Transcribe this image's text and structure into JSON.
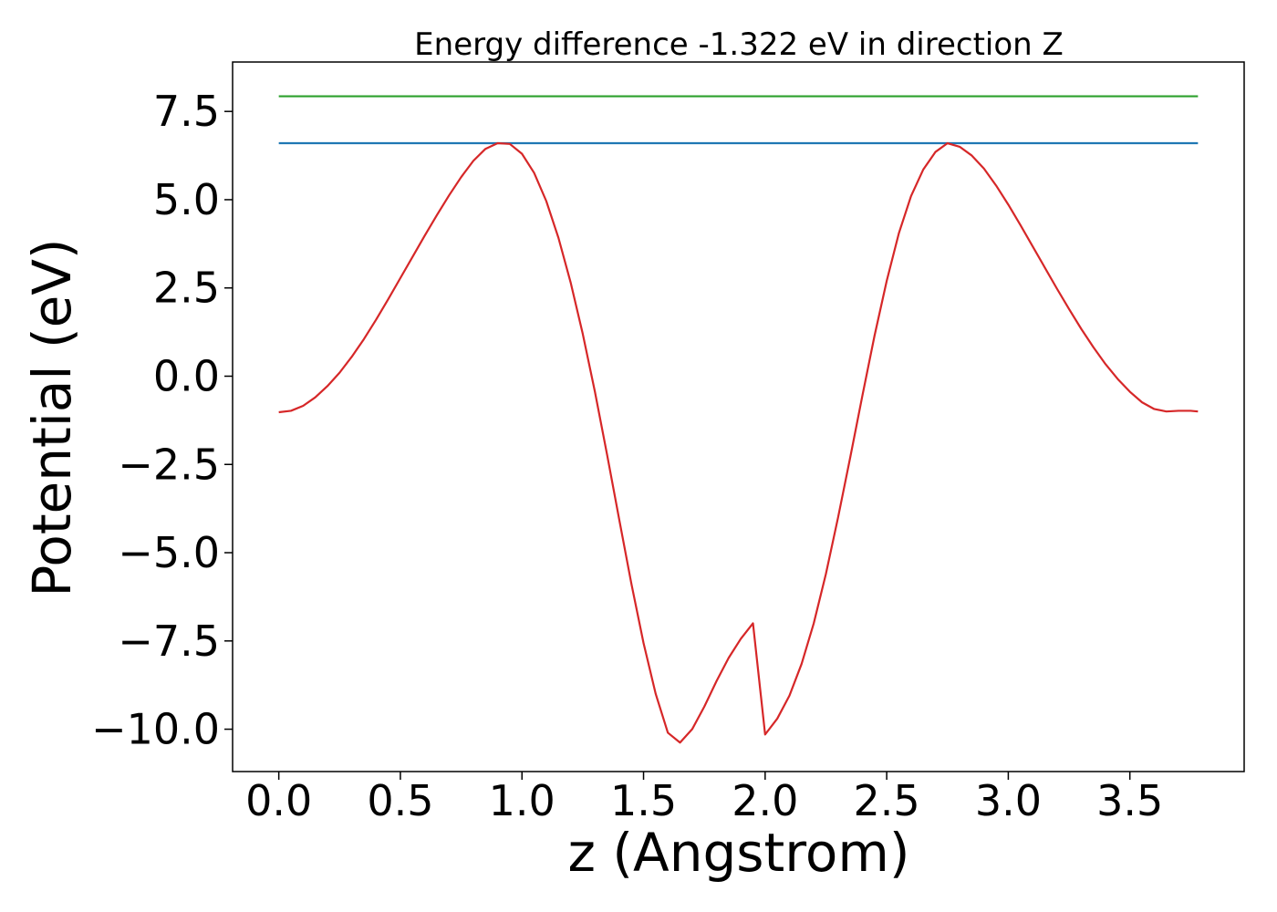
{
  "chart_data": {
    "type": "line",
    "title": "Energy difference -1.322 eV in direction Z",
    "xlabel": "z (Angstrom)",
    "ylabel": "Potential (eV)",
    "xlim": [
      -0.19,
      3.97
    ],
    "ylim": [
      -11.2,
      8.9
    ],
    "grid": false,
    "x_ticks": [
      {
        "value": 0.0,
        "label": "0.0"
      },
      {
        "value": 0.5,
        "label": "0.5"
      },
      {
        "value": 1.0,
        "label": "1.0"
      },
      {
        "value": 1.5,
        "label": "1.5"
      },
      {
        "value": 2.0,
        "label": "2.0"
      },
      {
        "value": 2.5,
        "label": "2.5"
      },
      {
        "value": 3.0,
        "label": "3.0"
      },
      {
        "value": 3.5,
        "label": "3.5"
      }
    ],
    "y_ticks": [
      {
        "value": 7.5,
        "label": "7.5"
      },
      {
        "value": 5.0,
        "label": "5.0"
      },
      {
        "value": 2.5,
        "label": "2.5"
      },
      {
        "value": 0.0,
        "label": "0.0"
      },
      {
        "value": -2.5,
        "label": "−2.5"
      },
      {
        "value": -5.0,
        "label": "−5.0"
      },
      {
        "value": -7.5,
        "label": "−7.5"
      },
      {
        "value": -10.0,
        "label": "−10.0"
      }
    ],
    "series": [
      {
        "color": "#d62728",
        "x": [
          0.0,
          0.05,
          0.1,
          0.15,
          0.2,
          0.25,
          0.3,
          0.35,
          0.4,
          0.45,
          0.5,
          0.55,
          0.6,
          0.65,
          0.7,
          0.75,
          0.8,
          0.85,
          0.9,
          0.95,
          1.0,
          1.05,
          1.1,
          1.15,
          1.2,
          1.25,
          1.3,
          1.35,
          1.4,
          1.45,
          1.5,
          1.55,
          1.6,
          1.65,
          1.7,
          1.75,
          1.8,
          1.85,
          1.9,
          1.95,
          2.0,
          2.05,
          2.1,
          2.15,
          2.2,
          2.25,
          2.3,
          2.35,
          2.4,
          2.45,
          2.5,
          2.55,
          2.6,
          2.65,
          2.7,
          2.75,
          2.8,
          2.85,
          2.9,
          2.95,
          3.0,
          3.05,
          3.1,
          3.15,
          3.2,
          3.25,
          3.3,
          3.35,
          3.4,
          3.45,
          3.5,
          3.55,
          3.6,
          3.65,
          3.7,
          3.75,
          3.78
        ],
        "y": [
          -1.02,
          -0.98,
          -0.84,
          -0.6,
          -0.28,
          0.1,
          0.55,
          1.05,
          1.6,
          2.18,
          2.78,
          3.38,
          3.98,
          4.56,
          5.12,
          5.64,
          6.1,
          6.44,
          6.6,
          6.58,
          6.3,
          5.76,
          4.96,
          3.92,
          2.66,
          1.2,
          -0.44,
          -2.22,
          -4.06,
          -5.88,
          -7.56,
          -9.0,
          -10.1,
          -10.38,
          -10.0,
          -9.36,
          -8.64,
          -7.98,
          -7.44,
          -7.0,
          -10.15,
          -9.7,
          -9.05,
          -8.15,
          -7.0,
          -5.6,
          -4.0,
          -2.3,
          -0.55,
          1.15,
          2.7,
          4.05,
          5.1,
          5.85,
          6.35,
          6.6,
          6.5,
          6.25,
          5.88,
          5.4,
          4.86,
          4.28,
          3.68,
          3.08,
          2.48,
          1.9,
          1.34,
          0.82,
          0.34,
          -0.08,
          -0.44,
          -0.74,
          -0.93,
          -1.0,
          -0.98,
          -0.98,
          -1.0
        ]
      },
      {
        "color": "#1f77b4",
        "x": [
          0.0,
          3.78
        ],
        "y": [
          6.6,
          6.6
        ]
      },
      {
        "color": "#2ca02c",
        "x": [
          0.0,
          3.78
        ],
        "y": [
          7.93,
          7.93
        ]
      }
    ]
  }
}
